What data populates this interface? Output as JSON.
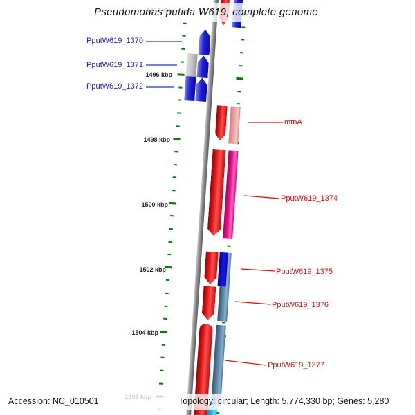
{
  "title": "Pseudomonas putida W619, complete genome",
  "scale": {
    "hidden_tick": "1494 kbp",
    "ticks": [
      "1496 kbp",
      "1498 kbp",
      "1500 kbp",
      "1502 kbp",
      "1504 kbp",
      "1506 kbp"
    ],
    "tick_color": "#007a00"
  },
  "genes": {
    "left": [
      {
        "label": "PputW619_1370",
        "color": "#2020d6"
      },
      {
        "label": "PputW619_1371",
        "color": "#2020d6"
      },
      {
        "label": "PputW619_1372",
        "color": "#2020d6"
      }
    ],
    "right": [
      {
        "label": "mtnA",
        "color": "#e21111"
      },
      {
        "label": "PputW619_1374",
        "color": "#e21111"
      },
      {
        "label": "PputW619_1375",
        "color": "#e21111"
      },
      {
        "label": "PputW619_1376",
        "color": "#e21111"
      },
      {
        "label": "PputW619_1377",
        "color": "#e21111"
      }
    ],
    "left_label_color": "#2222cc",
    "right_label_color": "#cc1111"
  },
  "footer": {
    "accession": "Accession: NC_010501",
    "topology": "Topology: circular; Length: 5,774,330 bp; Genes: 5,280"
  }
}
